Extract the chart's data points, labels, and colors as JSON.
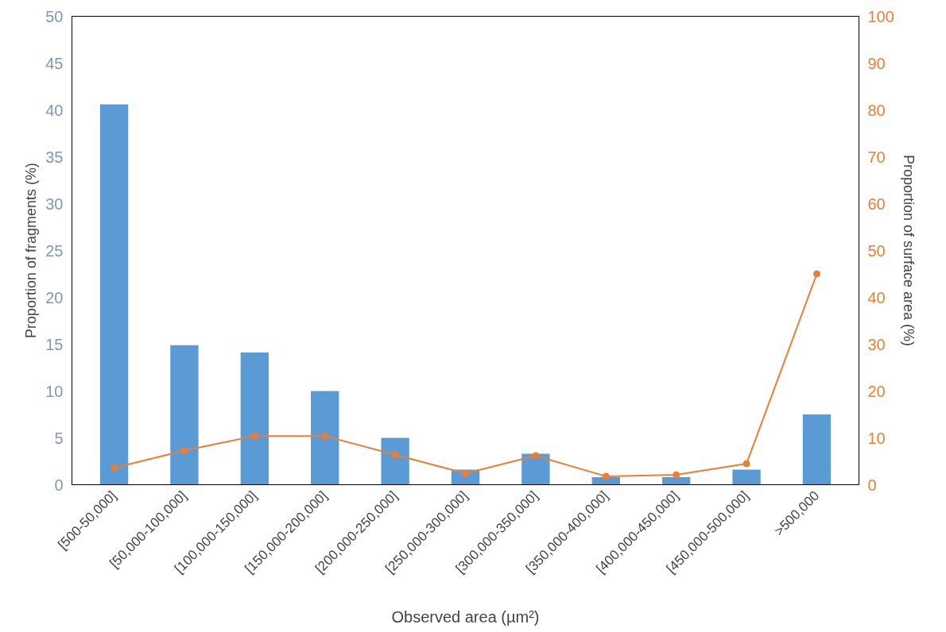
{
  "chart_data": {
    "type": "bar",
    "xlabel": "Observed area (µm²)",
    "ylabel": "Proportion of fragments (%)",
    "y2label": "Proportion of surface area (%)",
    "categories": [
      "[500-50,000]",
      "[50,000-100,000]",
      "[100,000-150,000]",
      "[150,000-200,000]",
      "[200,000-250,000]",
      "[250,000-300,000]",
      "[300,000-350,000]",
      "[350,000-400,000]",
      "[400,000-450,000]",
      "[450,000-500,000]",
      ">500,000"
    ],
    "series": [
      {
        "color": "#5b9bd5",
        "values": [
          40.6,
          14.9,
          14.1,
          10.0,
          5.0,
          1.6,
          3.3,
          0.8,
          0.8,
          1.6,
          7.5
        ]
      },
      {
        "type": "line",
        "axis": "y2",
        "color": "#ed7d31",
        "marker": "circle",
        "values": [
          3.6,
          7.3,
          10.4,
          10.4,
          6.4,
          2.4,
          6.2,
          1.8,
          2.1,
          4.5,
          45.0
        ]
      }
    ],
    "ylim": [
      0,
      50
    ],
    "yticks": [
      0,
      5,
      10,
      15,
      20,
      25,
      30,
      35,
      40,
      45,
      50
    ],
    "y2lim": [
      0,
      100
    ],
    "y2ticks": [
      0,
      10,
      20,
      30,
      40,
      50,
      60,
      70,
      80,
      90,
      100
    ]
  }
}
